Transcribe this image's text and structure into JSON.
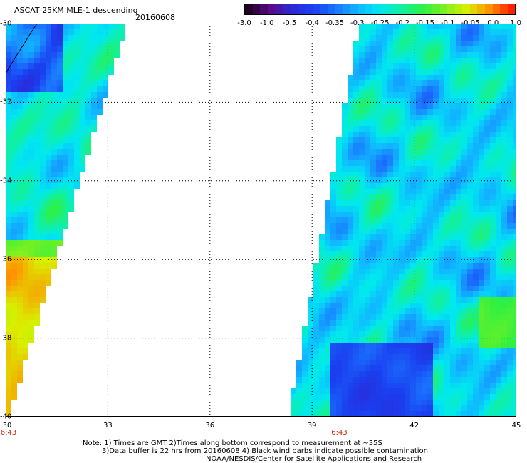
{
  "title": "ASCAT 25KM MLE-1 descending",
  "date": "20160608",
  "colorbar": {
    "labels": [
      "-3.0",
      "-1.0",
      "-0.5",
      "-0.4",
      "-0.35",
      "-0.3",
      "-0.25",
      "-0.2",
      "-0.15",
      "-0.1",
      "-0.05",
      "0.0",
      "1.0"
    ],
    "colors": [
      "#220022",
      "#5a0a8a",
      "#2a2ad8",
      "#1a40f0",
      "#1a78ff",
      "#10b8ff",
      "#00e8f0",
      "#10f0a0",
      "#30f040",
      "#80f020",
      "#d8f000",
      "#ff9000",
      "#ff2000"
    ]
  },
  "map": {
    "lon_range": [
      30,
      45
    ],
    "lat_range": [
      -40,
      -30
    ],
    "x_ticks": [
      "30",
      "33",
      "36",
      "39",
      "42",
      "45"
    ],
    "y_ticks": [
      "-30",
      "-32",
      "-34",
      "-36",
      "-38",
      "-40"
    ],
    "pass_times": [
      {
        "label": "6:43",
        "lon": 30
      },
      {
        "label": "6:43",
        "lon": 39.8
      }
    ]
  },
  "notes": [
    "Note: 1) Times are GMT 2)Times along bottom correspond to measurement at ~35S",
    "3)Data buffer is 22 hrs from 20160608 4) Black wind barbs indicate possible contamination",
    "NOAA/NESDIS/Center for Satellite Applications and Research"
  ]
}
